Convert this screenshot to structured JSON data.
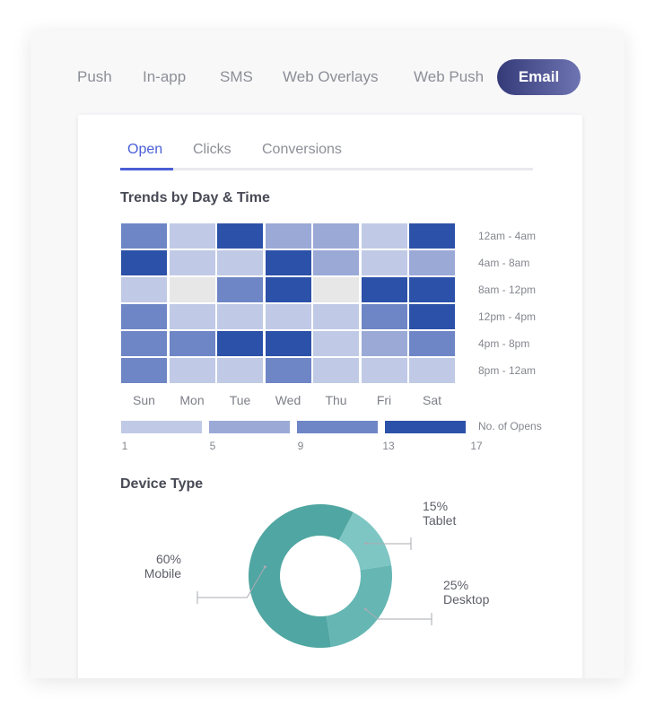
{
  "channel_tabs": [
    {
      "label": "Push",
      "active": false
    },
    {
      "label": "In-app",
      "active": false
    },
    {
      "label": "SMS",
      "active": false
    },
    {
      "label": "Web Overlays",
      "active": false
    },
    {
      "label": "Web Push",
      "active": false
    },
    {
      "label": "Email",
      "active": true
    }
  ],
  "sub_tabs": [
    {
      "label": "Open",
      "active": true
    },
    {
      "label": "Clicks",
      "active": false
    },
    {
      "label": "Conversions",
      "active": false
    }
  ],
  "colors": {
    "level1": "#c0cae6",
    "level2": "#9aa9d6",
    "level3": "#6f86c6",
    "level4": "#2c51a8",
    "empty": "#e7e7e8",
    "active_tab": "#4a5fd6",
    "donut_mobile": "#50a6a2",
    "donut_tablet": "#7ec6c3",
    "donut_desktop": "#66b7b4"
  },
  "chart_data": [
    {
      "type": "heatmap",
      "title": "Trends by Day & Time",
      "x_categories": [
        "Sun",
        "Mon",
        "Tue",
        "Wed",
        "Thu",
        "Fri",
        "Sat"
      ],
      "y_categories": [
        "12am - 4am",
        "4am - 8am",
        "8am - 12pm",
        "12pm - 4pm",
        "4pm - 8pm",
        "8pm - 12am"
      ],
      "values": [
        [
          11,
          3,
          15,
          7,
          7,
          3,
          15
        ],
        [
          15,
          3,
          3,
          15,
          7,
          3,
          7
        ],
        [
          3,
          0,
          11,
          15,
          0,
          15,
          15
        ],
        [
          11,
          3,
          3,
          3,
          3,
          11,
          15
        ],
        [
          11,
          11,
          15,
          15,
          3,
          7,
          11
        ],
        [
          11,
          3,
          3,
          11,
          3,
          3,
          3
        ]
      ],
      "legend": {
        "title": "No. of Opens",
        "ticks": [
          1,
          5,
          9,
          13,
          17
        ]
      }
    },
    {
      "type": "pie",
      "title": "Device Type",
      "slices": [
        {
          "label": "Tablet",
          "value": 15,
          "pct_label": "15%"
        },
        {
          "label": "Desktop",
          "value": 25,
          "pct_label": "25%"
        },
        {
          "label": "Mobile",
          "value": 60,
          "pct_label": "60%"
        }
      ]
    }
  ]
}
